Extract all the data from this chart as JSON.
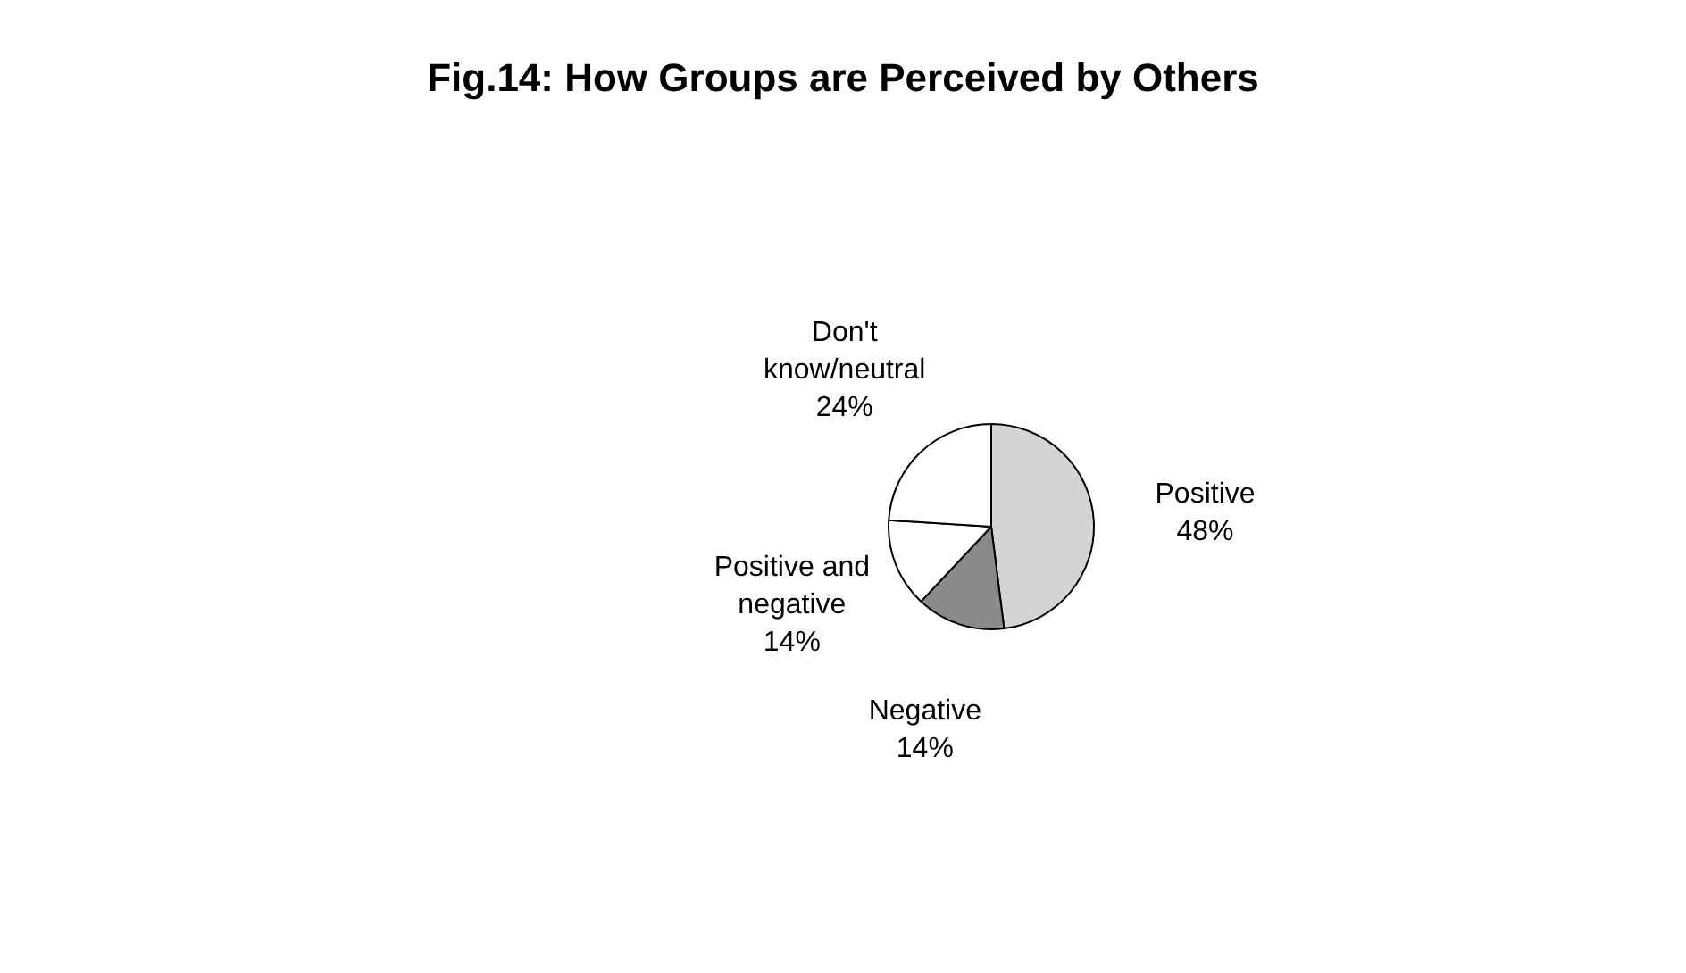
{
  "chart_data": {
    "type": "pie",
    "title": "Fig.14: How Groups are Perceived by Others",
    "categories": [
      "Positive",
      "Negative",
      "Positive and negative",
      "Don't know/neutral"
    ],
    "values": [
      48,
      14,
      14,
      24
    ],
    "colors": [
      "#d4d4d4",
      "#8a8a8a",
      "#ffffff",
      "#ffffff"
    ],
    "value_labels": [
      "48%",
      "14%",
      "14%",
      "24%"
    ],
    "legend": false
  }
}
